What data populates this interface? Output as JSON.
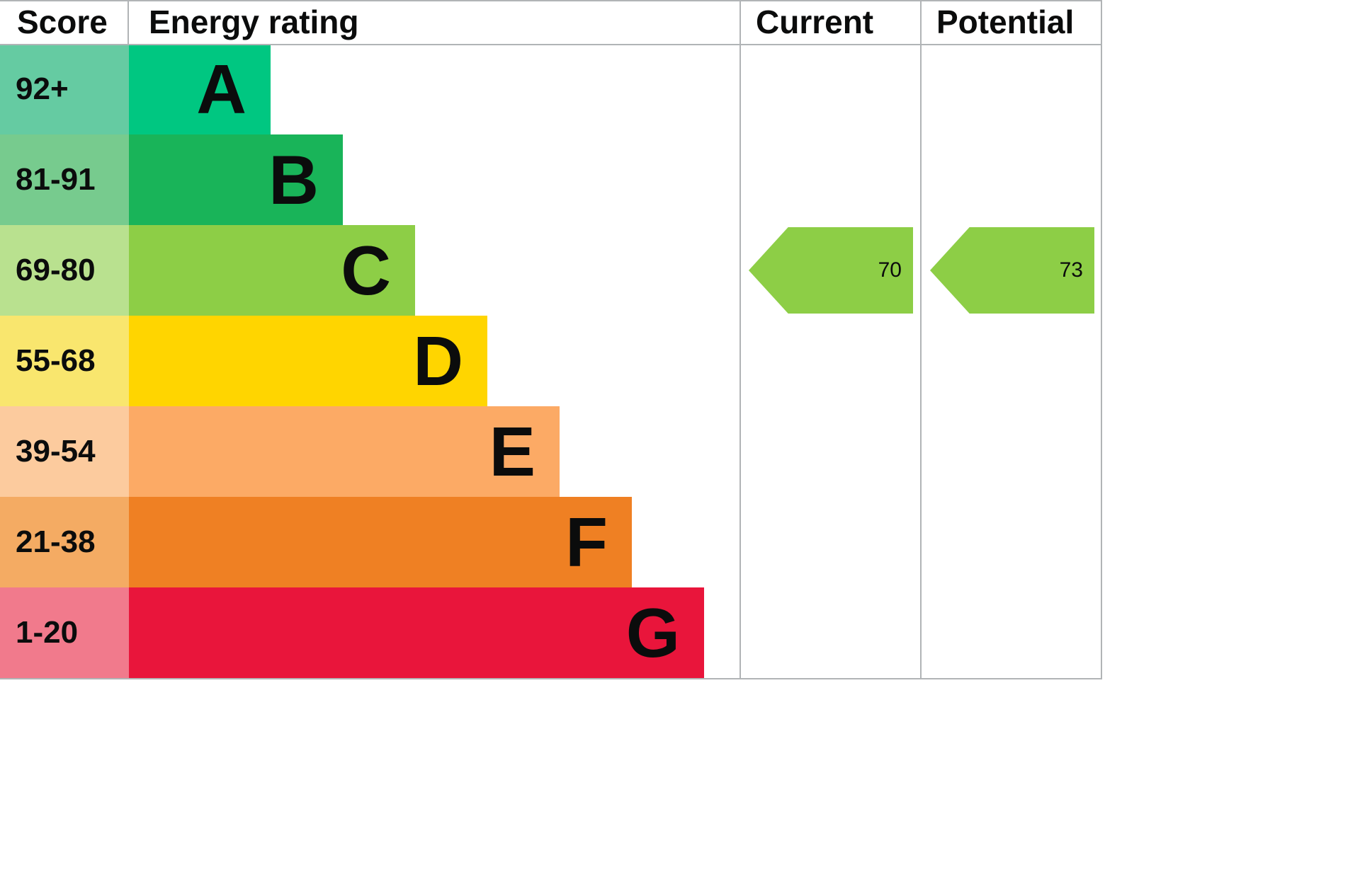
{
  "header": {
    "score": "Score",
    "energy_rating": "Energy rating",
    "current": "Current",
    "potential": "Potential"
  },
  "colors": {
    "border": "#b1b4b6",
    "text": "#0b0c0c"
  },
  "chart_data": {
    "type": "bar",
    "orientation": "horizontal",
    "title": "Energy rating",
    "columns": [
      "Score",
      "Energy rating",
      "Current",
      "Potential"
    ],
    "bands": [
      {
        "letter": "A",
        "score_range": "92+",
        "color": "#00c781",
        "tint": "#65cba2"
      },
      {
        "letter": "B",
        "score_range": "81-91",
        "color": "#19b459",
        "tint": "#77cb8e"
      },
      {
        "letter": "C",
        "score_range": "69-80",
        "color": "#8dce46",
        "tint": "#b9e18f"
      },
      {
        "letter": "D",
        "score_range": "55-68",
        "color": "#ffd500",
        "tint": "#f9e66e"
      },
      {
        "letter": "E",
        "score_range": "39-54",
        "color": "#fcaa65",
        "tint": "#fccb9e"
      },
      {
        "letter": "F",
        "score_range": "21-38",
        "color": "#ef8023",
        "tint": "#f4ab63"
      },
      {
        "letter": "G",
        "score_range": "1-20",
        "color": "#e9153b",
        "tint": "#f17a8c"
      }
    ],
    "current": {
      "label": "Current",
      "value": 70,
      "band": "C",
      "color": "#8dce46"
    },
    "potential": {
      "label": "Potential",
      "value": 73,
      "band": "C",
      "color": "#8dce46"
    }
  }
}
